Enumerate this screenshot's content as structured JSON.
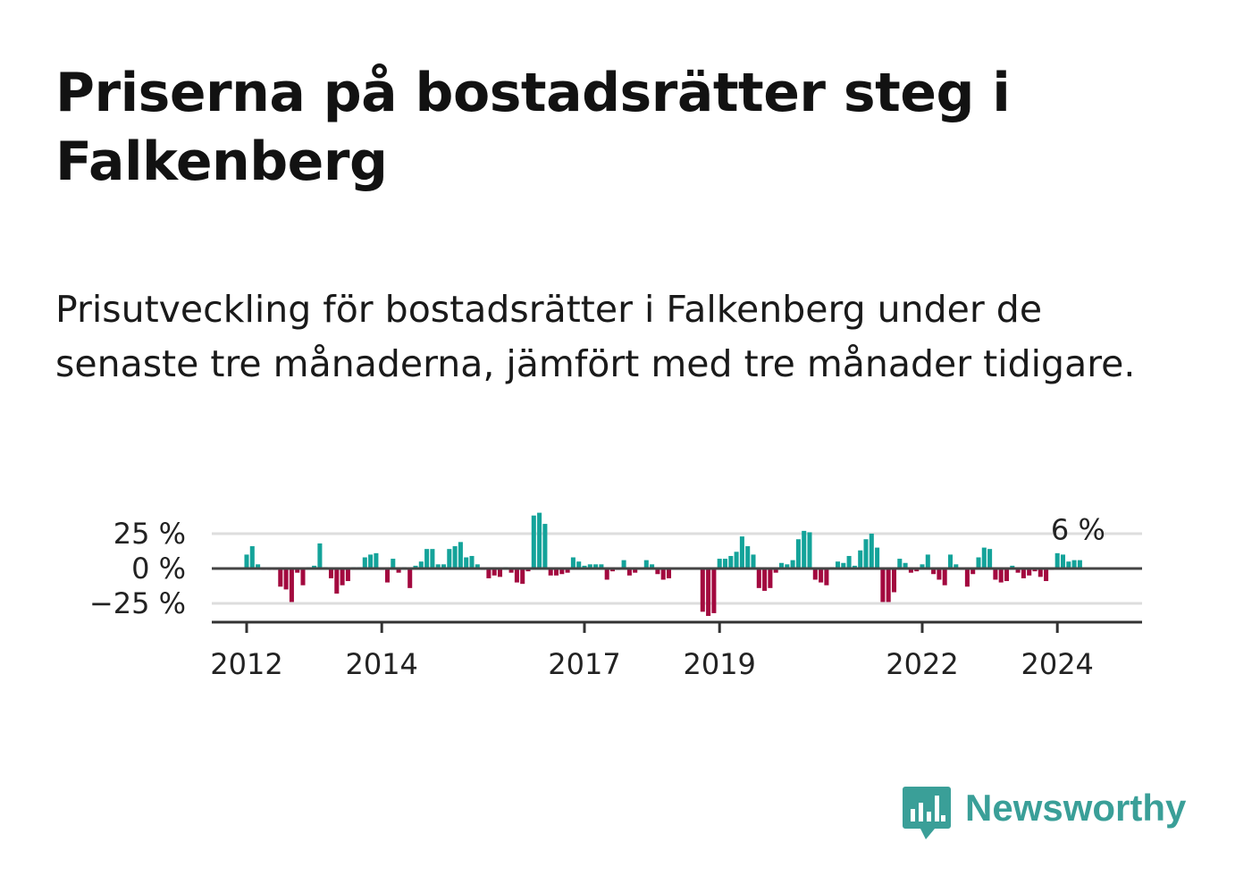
{
  "title": "Priserna på bostadsrätter steg i Falkenberg",
  "subtitle": "Prisutveckling för bostadsrätter i Falkenberg under de senaste tre månaderna, jämfört med tre månader tidigare.",
  "brand": {
    "name": "Newsworthy",
    "icon": "newsworthy-logo-icon",
    "color": "#3a9f98"
  },
  "colors": {
    "positive": "#14a39a",
    "negative": "#a3093f",
    "axis": "#333333",
    "grid": "#dddddd"
  },
  "chart_data": {
    "type": "bar",
    "ylim": [
      -35,
      40
    ],
    "y_ticks": [
      {
        "value": 25,
        "label": "25 %"
      },
      {
        "value": 0,
        "label": "0 %"
      },
      {
        "value": -25,
        "label": "−25 %"
      }
    ],
    "x_ticks": [
      {
        "year": 2012,
        "label": "2012"
      },
      {
        "year": 2014,
        "label": "2014"
      },
      {
        "year": 2017,
        "label": "2017"
      },
      {
        "year": 2019,
        "label": "2019"
      },
      {
        "year": 2022,
        "label": "2022"
      },
      {
        "year": 2024,
        "label": "2024"
      }
    ],
    "start": "2012-01",
    "values": [
      10,
      16,
      3,
      -1,
      -1,
      -1,
      -13,
      -15,
      -24,
      -3,
      -12,
      1,
      2,
      18,
      1,
      -7,
      -18,
      -12,
      -9,
      1,
      1,
      8,
      10,
      11,
      -1,
      -10,
      7,
      -3,
      1,
      -14,
      2,
      5,
      14,
      14,
      3,
      3,
      14,
      16,
      19,
      8,
      9,
      3,
      -1,
      -7,
      -5,
      -6,
      1,
      -3,
      -10,
      -11,
      -2,
      38,
      40,
      32,
      -5,
      -5,
      -4,
      -3,
      8,
      5,
      2,
      3,
      3,
      3,
      -8,
      -2,
      -1,
      6,
      -5,
      -3,
      0,
      6,
      3,
      -4,
      -8,
      -7,
      0,
      0,
      0,
      0,
      0,
      -31,
      -34,
      -32,
      7,
      7,
      9,
      12,
      23,
      16,
      10,
      -14,
      -16,
      -14,
      -3,
      4,
      3,
      6,
      21,
      27,
      26,
      -8,
      -10,
      -12,
      1,
      5,
      4,
      9,
      2,
      13,
      21,
      25,
      15,
      -24,
      -24,
      -17,
      7,
      4,
      -3,
      -2,
      3,
      10,
      -4,
      -8,
      -12,
      10,
      3,
      -1,
      -13,
      -4,
      8,
      15,
      14,
      -8,
      -10,
      -9,
      2,
      -3,
      -7,
      -5,
      -2,
      -6,
      -9,
      -1,
      11,
      10,
      5,
      6,
      6
    ],
    "last_label": "6 %"
  }
}
